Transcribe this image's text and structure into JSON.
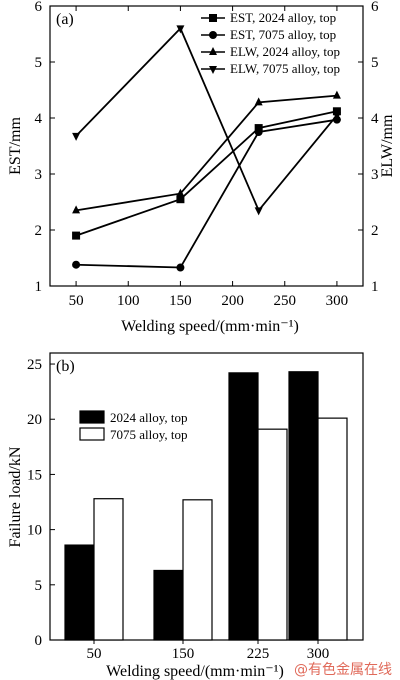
{
  "chart_data": [
    {
      "panel_label": "(a)",
      "type": "line",
      "x": [
        50,
        150,
        225,
        300
      ],
      "xlim": [
        25,
        325
      ],
      "xticks": [
        50,
        100,
        150,
        200,
        250,
        300
      ],
      "xlabel": "Welding speed/(mm·min⁻¹)",
      "ylim": [
        1,
        6
      ],
      "yticks": [
        1,
        2,
        3,
        4,
        5,
        6
      ],
      "ylabel_left": "EST/mm",
      "ylabel_right": "ELW/mm",
      "legend_position": "top-right",
      "grid": false,
      "series": [
        {
          "name": "EST, 2024 alloy, top",
          "marker": "square",
          "values": [
            1.9,
            2.55,
            3.82,
            4.12
          ]
        },
        {
          "name": "EST, 7075 alloy, top",
          "marker": "circle",
          "values": [
            1.38,
            1.33,
            3.75,
            3.97
          ]
        },
        {
          "name": "ELW, 2024 alloy, top",
          "marker": "triangle-up",
          "values": [
            2.35,
            2.65,
            4.28,
            4.4
          ]
        },
        {
          "name": "ELW, 7075 alloy, top",
          "marker": "triangle-down",
          "values": [
            3.68,
            5.6,
            2.35,
            4.05
          ]
        }
      ]
    },
    {
      "panel_label": "(b)",
      "type": "bar",
      "categories": [
        "50",
        "150",
        "225",
        "300"
      ],
      "xlabel": "Welding speed/(mm·min⁻¹)",
      "ylabel": "Failure load/kN",
      "ylim": [
        0,
        26
      ],
      "yticks": [
        0,
        5,
        10,
        15,
        20,
        25
      ],
      "legend_position": "top-left",
      "grid": false,
      "series": [
        {
          "name": "2024 alloy, top",
          "fill": "#000000",
          "values": [
            8.6,
            6.3,
            24.2,
            24.3
          ]
        },
        {
          "name": "7075 alloy, top",
          "fill": "#ffffff",
          "values": [
            12.8,
            12.7,
            19.1,
            20.1
          ]
        }
      ]
    }
  ],
  "watermark": "@有色金属在线"
}
